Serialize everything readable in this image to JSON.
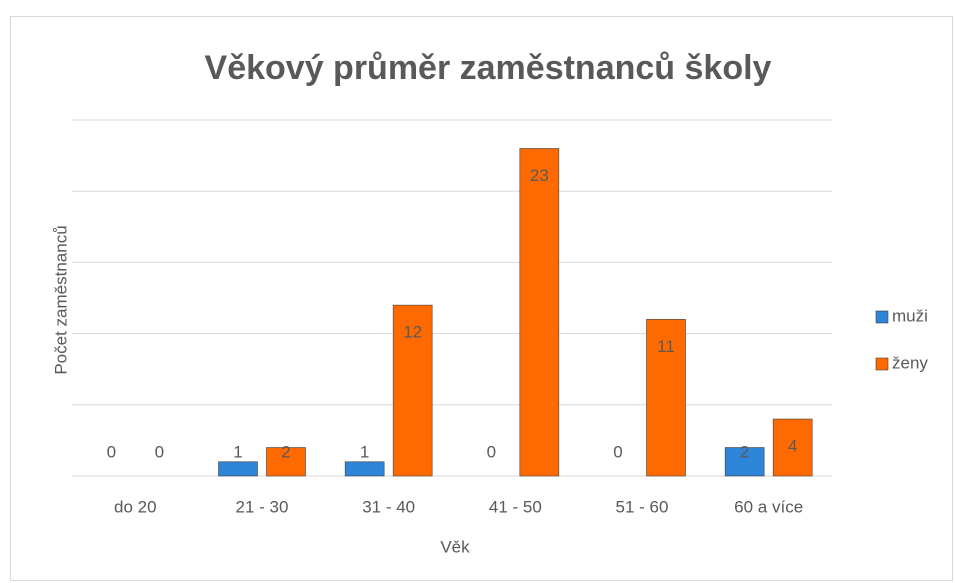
{
  "chart_data": {
    "type": "bar",
    "title": "Věkový průměr zaměstnanců školy",
    "x_label": "Věk",
    "y_label": "Počet zaměstnanců",
    "categories": [
      "do 20",
      "21 - 30",
      "31 - 40",
      "41 - 50",
      "51 - 60",
      "60 a více"
    ],
    "series": [
      {
        "name": "muži",
        "color": "#2e84d6",
        "values": [
          0,
          1,
          1,
          0,
          0,
          2
        ]
      },
      {
        "name": "ženy",
        "color": "#ff6a00",
        "values": [
          0,
          2,
          12,
          23,
          11,
          4
        ]
      }
    ],
    "ylim": [
      0,
      25
    ],
    "yticks": [
      0,
      5,
      10,
      15,
      20,
      25
    ],
    "grid": true,
    "legend": "right"
  }
}
